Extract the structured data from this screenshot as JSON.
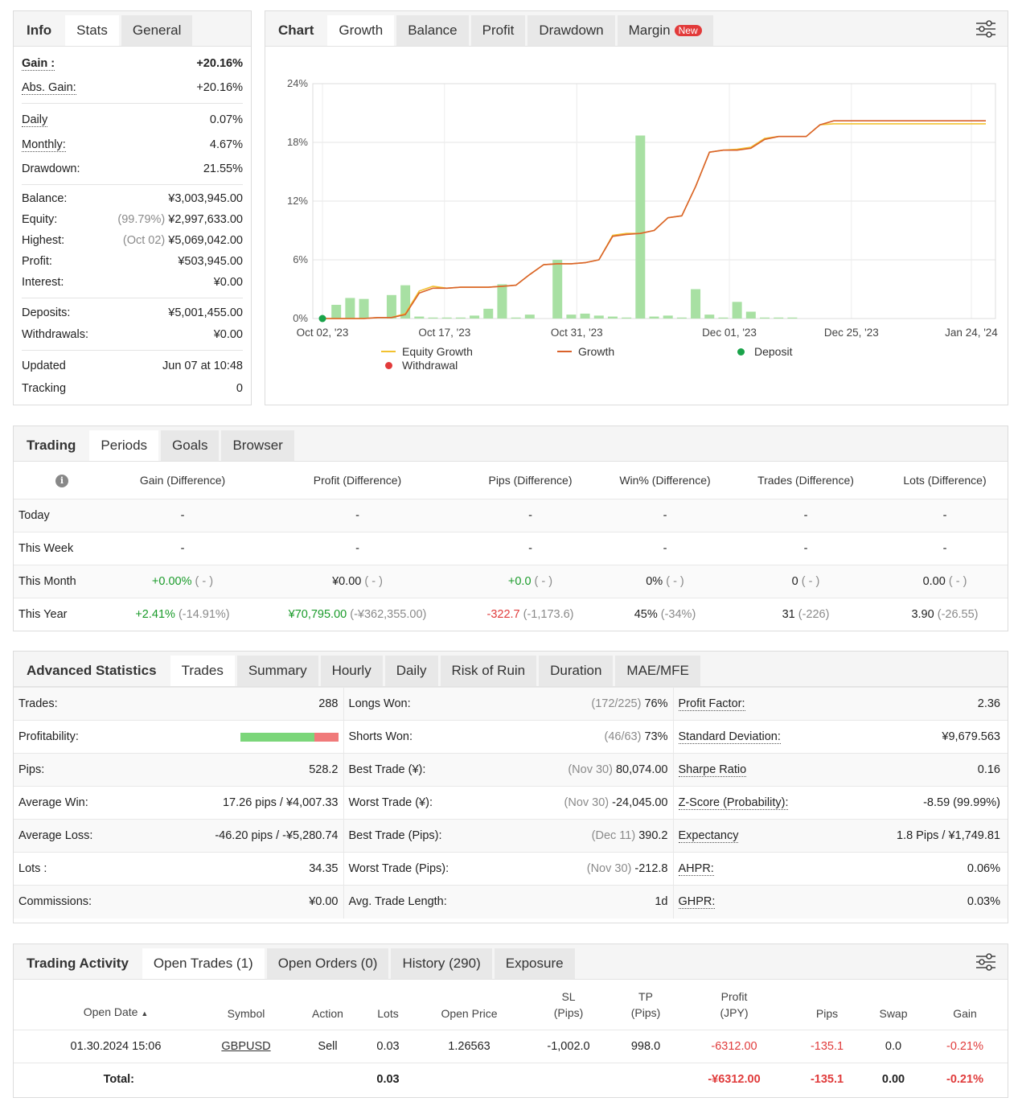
{
  "info": {
    "tabs": [
      "Info",
      "Stats",
      "General"
    ],
    "gain_label": "Gain :",
    "gain": "+20.16%",
    "abs_gain_label": "Abs. Gain:",
    "abs_gain": "+20.16%",
    "daily_label": "Daily",
    "daily": "0.07%",
    "monthly_label": "Monthly:",
    "monthly": "4.67%",
    "drawdown_label": "Drawdown:",
    "drawdown": "21.55%",
    "balance_label": "Balance:",
    "balance": "¥3,003,945.00",
    "equity_label": "Equity:",
    "equity_pct": "(99.79%)",
    "equity": "¥2,997,633.00",
    "highest_label": "Highest:",
    "highest_date": "(Oct 02)",
    "highest": "¥5,069,042.00",
    "profit_label": "Profit:",
    "profit": "¥503,945.00",
    "interest_label": "Interest:",
    "interest": "¥0.00",
    "deposits_label": "Deposits:",
    "deposits": "¥5,001,455.00",
    "withdrawals_label": "Withdrawals:",
    "withdrawals": "¥0.00",
    "updated_label": "Updated",
    "updated": "Jun 07 at 10:48",
    "tracking_label": "Tracking",
    "tracking": "0"
  },
  "chart_panel": {
    "tabs": [
      "Chart",
      "Growth",
      "Balance",
      "Profit",
      "Drawdown",
      "Margin"
    ],
    "margin_badge": "New",
    "legend": {
      "equity_growth": "Equity Growth",
      "growth": "Growth",
      "deposit": "Deposit",
      "withdrawal": "Withdrawal"
    }
  },
  "chart_data": {
    "type": "line",
    "y_ticks": [
      "0%",
      "6%",
      "12%",
      "18%",
      "24%"
    ],
    "ylim": [
      0,
      24
    ],
    "x_ticks": [
      "Oct 02, '23",
      "Oct 17, '23",
      "Oct 31, '23",
      "Dec 01, '23",
      "Dec 25, '23",
      "Jan 24, '24"
    ],
    "grid": true,
    "legend_position": "bottom",
    "series": [
      {
        "name": "Growth",
        "color": "#d9622b",
        "x": [
          0,
          3,
          4,
          5,
          6,
          7,
          8,
          9,
          10,
          11,
          12,
          13,
          14,
          15,
          16,
          17,
          18,
          19,
          20,
          21,
          22,
          23,
          24,
          25,
          26,
          27,
          28,
          29,
          30,
          31,
          32,
          33,
          34,
          35,
          36,
          37,
          38,
          39,
          40,
          41,
          42,
          43,
          44,
          45,
          46,
          47,
          48
        ],
        "y": [
          0,
          0,
          0.1,
          0.1,
          0.4,
          2.6,
          3.1,
          3.1,
          3.2,
          3.2,
          3.2,
          3.3,
          3.4,
          4.5,
          5.5,
          5.6,
          5.6,
          5.7,
          6.0,
          8.4,
          8.6,
          8.7,
          9.0,
          10.3,
          10.5,
          13.5,
          17.0,
          17.2,
          17.2,
          17.4,
          18.3,
          18.6,
          18.6,
          18.6,
          19.8,
          20.2,
          20.2,
          20.2,
          20.2,
          20.2,
          20.2,
          20.2,
          20.2,
          20.2,
          20.2,
          20.2,
          20.2
        ]
      },
      {
        "name": "Equity Growth",
        "color": "#f2c230",
        "x": [
          0,
          3,
          4,
          5,
          6,
          7,
          8,
          9,
          10,
          11,
          12,
          13,
          14,
          15,
          16,
          17,
          18,
          19,
          20,
          21,
          22,
          23,
          24,
          25,
          26,
          27,
          28,
          29,
          30,
          31,
          32,
          33,
          34,
          35,
          36,
          37,
          38,
          39,
          40,
          41,
          42,
          43,
          44,
          45,
          46,
          47,
          48
        ],
        "y": [
          0,
          0,
          0.1,
          0.1,
          0.5,
          2.8,
          3.3,
          3.1,
          3.2,
          3.2,
          3.2,
          3.3,
          3.4,
          4.5,
          5.5,
          5.6,
          5.6,
          5.7,
          6.0,
          8.5,
          8.7,
          8.7,
          9.0,
          10.3,
          10.5,
          13.5,
          17.0,
          17.2,
          17.3,
          17.5,
          18.4,
          18.6,
          18.6,
          18.6,
          19.8,
          19.9,
          19.9,
          19.9,
          19.9,
          19.9,
          19.9,
          19.9,
          19.9,
          19.9,
          19.9,
          19.9,
          19.9
        ]
      },
      {
        "name": "Profit bars",
        "color": "#a8e0a3",
        "x": [
          1,
          2,
          3,
          5,
          6,
          7,
          8,
          9,
          10,
          11,
          12,
          13,
          14,
          15,
          17,
          18,
          19,
          20,
          21,
          22,
          23,
          24,
          25,
          26,
          27,
          28,
          29,
          30,
          31,
          32,
          33,
          34
        ],
        "y": [
          1.4,
          2.1,
          2.0,
          2.4,
          3.4,
          0.2,
          0.1,
          0.1,
          0.1,
          0.3,
          1.0,
          3.5,
          0.1,
          0.4,
          6.0,
          0.4,
          0.5,
          0.3,
          0.2,
          0.1,
          18.7,
          0.2,
          0.3,
          0.1,
          3.0,
          0.4,
          0.1,
          1.7,
          0.7,
          0.1,
          0.1,
          0.1
        ]
      }
    ],
    "deposit_point": {
      "x": 0,
      "y": 0
    }
  },
  "trading": {
    "tabs": [
      "Trading",
      "Periods",
      "Goals",
      "Browser"
    ],
    "headers": [
      "Gain (Difference)",
      "Profit (Difference)",
      "Pips (Difference)",
      "Win% (Difference)",
      "Trades (Difference)",
      "Lots (Difference)"
    ],
    "info_icon": "i",
    "rows": [
      {
        "period": "Today",
        "cells": [
          [
            "-",
            ""
          ],
          [
            "-",
            ""
          ],
          [
            "-",
            ""
          ],
          [
            "-",
            ""
          ],
          [
            "-",
            ""
          ],
          [
            "-",
            ""
          ]
        ]
      },
      {
        "period": "This Week",
        "cells": [
          [
            "-",
            ""
          ],
          [
            "-",
            ""
          ],
          [
            "-",
            ""
          ],
          [
            "-",
            ""
          ],
          [
            "-",
            ""
          ],
          [
            "-",
            ""
          ]
        ]
      },
      {
        "period": "This Month",
        "cells": [
          [
            "+0.00%",
            "( - )"
          ],
          [
            "¥0.00",
            "( - )"
          ],
          [
            "+0.0",
            "( - )"
          ],
          [
            "0%",
            "( - )"
          ],
          [
            "0",
            "( - )"
          ],
          [
            "0.00",
            "( - )"
          ]
        ]
      },
      {
        "period": "This Year",
        "cells": [
          [
            "+2.41%",
            "(-14.91%)"
          ],
          [
            "¥70,795.00",
            "(-¥362,355.00)"
          ],
          [
            "-322.7",
            "(-1,173.6)"
          ],
          [
            "45%",
            "(-34%)"
          ],
          [
            "31",
            "(-226)"
          ],
          [
            "3.90",
            "(-26.55)"
          ]
        ]
      }
    ]
  },
  "advanced": {
    "tabs": [
      "Advanced Statistics",
      "Trades",
      "Summary",
      "Hourly",
      "Daily",
      "Risk of Ruin",
      "Duration",
      "MAE/MFE"
    ],
    "rows": [
      {
        "l1": "Trades:",
        "v1": "288",
        "l2": "Longs Won:",
        "v2a": "(172/225)",
        "v2": "76%",
        "l3": "Profit Factor:",
        "v3": "2.36"
      },
      {
        "l1": "Profitability:",
        "v1": "",
        "l2": "Shorts Won:",
        "v2a": "(46/63)",
        "v2": "73%",
        "l3": "Standard Deviation:",
        "v3": "¥9,679.563"
      },
      {
        "l1": "Pips:",
        "v1": "528.2",
        "l2": "Best Trade (¥):",
        "v2a": "(Nov 30)",
        "v2": "80,074.00",
        "l3": "Sharpe Ratio",
        "v3": "0.16"
      },
      {
        "l1": "Average Win:",
        "v1": "17.26 pips / ¥4,007.33",
        "l2": "Worst Trade (¥):",
        "v2a": "(Nov 30)",
        "v2": "-24,045.00",
        "l3": "Z-Score (Probability):",
        "v3": "-8.59 (99.99%)"
      },
      {
        "l1": "Average Loss:",
        "v1": "-46.20 pips / -¥5,280.74",
        "l2": "Best Trade (Pips):",
        "v2a": "(Dec 11)",
        "v2": "390.2",
        "l3": "Expectancy",
        "v3": "1.8 Pips / ¥1,749.81"
      },
      {
        "l1": "Lots :",
        "v1": "34.35",
        "l2": "Worst Trade (Pips):",
        "v2a": "(Nov 30)",
        "v2": "-212.8",
        "l3": "AHPR:",
        "v3": "0.06%"
      },
      {
        "l1": "Commissions:",
        "v1": "¥0.00",
        "l2": "Avg. Trade Length:",
        "v2a": "",
        "v2": "1d",
        "l3": "GHPR:",
        "v3": "0.03%"
      }
    ],
    "profitability_win_fraction": 0.76
  },
  "activity": {
    "tabs": [
      "Trading Activity",
      "Open Trades (1)",
      "Open Orders (0)",
      "History (290)",
      "Exposure"
    ],
    "headers": {
      "open_date": "Open Date",
      "sort_arrow": "▲",
      "symbol": "Symbol",
      "action": "Action",
      "lots": "Lots",
      "open_price": "Open Price",
      "sl": "SL",
      "sl_unit": "(Pips)",
      "tp": "TP",
      "tp_unit": "(Pips)",
      "profit": "Profit",
      "profit_unit": "(JPY)",
      "pips": "Pips",
      "swap": "Swap",
      "gain": "Gain"
    },
    "row": {
      "open_date": "01.30.2024 15:06",
      "symbol": "GBPUSD",
      "action": "Sell",
      "lots": "0.03",
      "open_price": "1.26563",
      "sl": "-1,002.0",
      "tp": "998.0",
      "profit": "-6312.00",
      "pips": "-135.1",
      "swap": "0.0",
      "gain": "-0.21%"
    },
    "total": {
      "label": "Total:",
      "lots": "0.03",
      "profit": "-¥6312.00",
      "pips": "-135.1",
      "swap": "0.00",
      "gain": "-0.21%"
    }
  }
}
